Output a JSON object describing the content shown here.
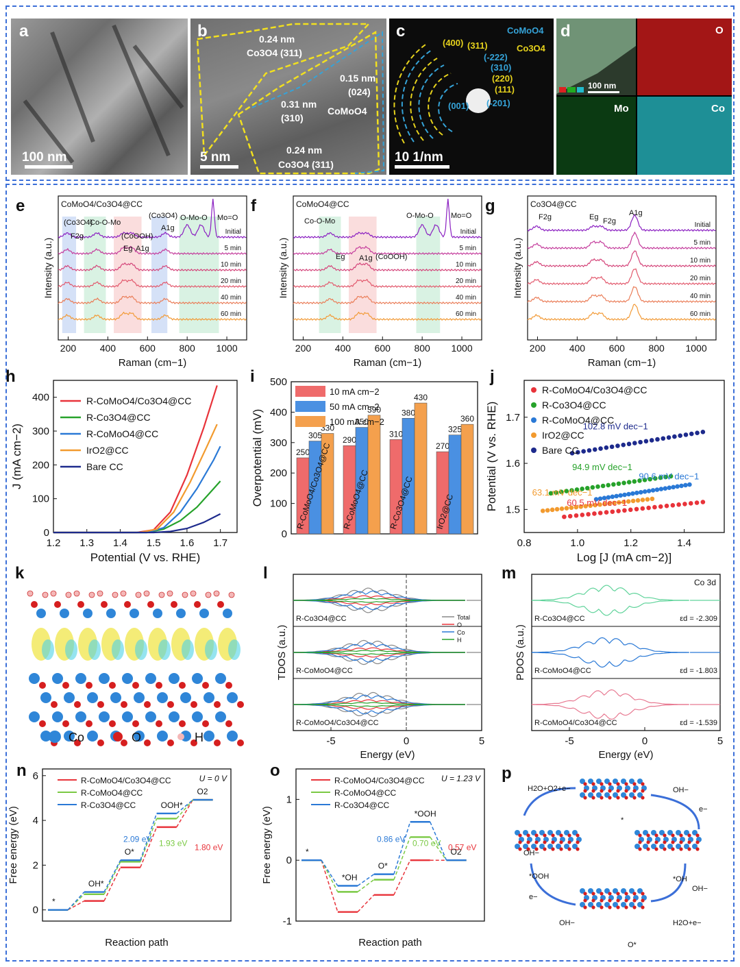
{
  "panel_labels": [
    "a",
    "b",
    "c",
    "d",
    "e",
    "f",
    "g",
    "h",
    "i",
    "j",
    "k",
    "l",
    "m",
    "n",
    "o",
    "p"
  ],
  "tem": {
    "a": {
      "scale": "100 nm"
    },
    "b": {
      "scale": "5 nm",
      "labels": [
        "0.24 nm",
        "Co3O4 (311)",
        "0.15 nm",
        "(024)",
        "0.31 nm",
        "(310)",
        "CoMoO4",
        "0.24 nm",
        "Co3O4 (311)"
      ]
    },
    "c": {
      "scale": "10 1/nm",
      "legend": [
        "CoMoO4",
        "Co3O4"
      ],
      "rings": [
        "(400)",
        "(311)",
        "(-222)",
        "(310)",
        "(220)",
        "(111)",
        "(001)",
        "(-201)"
      ]
    },
    "d": {
      "scale": "100 nm",
      "maps": [
        "O",
        "Mo",
        "Co"
      ],
      "mini_legend": [
        "O",
        "Mo",
        "Co"
      ]
    }
  },
  "colors": {
    "red": "#e8333a",
    "green": "#26a22a",
    "blue": "#2a79d6",
    "orange": "#f29a2e",
    "navy": "#1d2a8c",
    "frame": "#3b6fd8"
  },
  "raman": {
    "xlabel": "Raman (cm−1)",
    "ylabel": "Intensity (a.u.)",
    "xticks": [
      200,
      400,
      600,
      800,
      1000
    ],
    "times": [
      "Initial",
      "5 min",
      "10 min",
      "20 min",
      "40 min",
      "60 min"
    ],
    "e": {
      "title": "CoMoO4/Co3O4@CC",
      "annotations": [
        "(Co3O4)",
        "F2g",
        "Co-O-Mo",
        "(CoOOH)",
        "Eg",
        "A1g",
        "(Co3O4)",
        "A1g",
        "O-Mo-O",
        "Mo=O"
      ]
    },
    "f": {
      "title": "CoMoO4@CC",
      "annotations": [
        "Co-O-Mo",
        "O-Mo-O",
        "Mo=O",
        "Eg",
        "A1g",
        "(CoOOH)"
      ]
    },
    "g": {
      "title": "Co3O4@CC",
      "annotations": [
        "F2g",
        "Eg",
        "F2g",
        "A1g"
      ]
    }
  },
  "chart_data": [
    {
      "type": "line",
      "panel": "h",
      "xlabel": "Potential (V vs. RHE)",
      "ylabel": "J (mA cm−2)",
      "xlim": [
        1.2,
        1.75
      ],
      "ylim": [
        0,
        450
      ],
      "xticks": [
        1.2,
        1.3,
        1.4,
        1.5,
        1.6,
        1.7
      ],
      "yticks": [
        0,
        100,
        200,
        300,
        400
      ],
      "series": [
        {
          "name": "R-CoMoO4/Co3O4@CC",
          "color": "#e8333a",
          "x": [
            1.2,
            1.45,
            1.5,
            1.55,
            1.6,
            1.65,
            1.69
          ],
          "y": [
            0,
            0,
            8,
            60,
            170,
            310,
            435
          ]
        },
        {
          "name": "R-Co3O4@CC",
          "color": "#26a22a",
          "x": [
            1.2,
            1.48,
            1.53,
            1.58,
            1.63,
            1.68,
            1.7
          ],
          "y": [
            0,
            0,
            10,
            35,
            75,
            130,
            152
          ]
        },
        {
          "name": "R-CoMoO4@CC",
          "color": "#2a79d6",
          "x": [
            1.2,
            1.48,
            1.53,
            1.58,
            1.63,
            1.68,
            1.7
          ],
          "y": [
            0,
            0,
            14,
            60,
            130,
            215,
            255
          ]
        },
        {
          "name": "IrO2@CC",
          "color": "#f29a2e",
          "x": [
            1.2,
            1.46,
            1.51,
            1.56,
            1.61,
            1.66,
            1.69
          ],
          "y": [
            0,
            0,
            10,
            60,
            150,
            255,
            320
          ]
        },
        {
          "name": "Bare CC",
          "color": "#1d2a8c",
          "x": [
            1.2,
            1.5,
            1.55,
            1.6,
            1.65,
            1.7
          ],
          "y": [
            0,
            0,
            3,
            12,
            30,
            55
          ]
        }
      ]
    },
    {
      "type": "bar",
      "panel": "i",
      "ylabel": "Overpotential (mV)",
      "ylim": [
        0,
        500
      ],
      "yticks": [
        0,
        100,
        200,
        300,
        400,
        500
      ],
      "categories": [
        "R-CoMoO4/Co3O4@CC",
        "R-CoMoO4@CC",
        "R-Co3O4@CC",
        "IrO2@CC"
      ],
      "series": [
        {
          "name": "10 mA cm−2",
          "color": "#ef6b6b",
          "values": [
            250,
            290,
            310,
            270
          ]
        },
        {
          "name": "50 mA cm−2",
          "color": "#4a90e2",
          "values": [
            305,
            350,
            380,
            325
          ]
        },
        {
          "name": "100 mA cm−2",
          "color": "#f4a04d",
          "values": [
            330,
            390,
            430,
            360
          ]
        }
      ]
    },
    {
      "type": "scatter",
      "panel": "j",
      "xlabel": "Log [J (mA cm−2)]",
      "ylabel": "Potential (V vs. RHE)",
      "xlim": [
        0.8,
        1.55
      ],
      "ylim": [
        1.45,
        1.78
      ],
      "xticks": [
        0.8,
        1.0,
        1.2,
        1.4
      ],
      "yticks": [
        1.5,
        1.6,
        1.7
      ],
      "series": [
        {
          "name": "R-CoMoO4/Co3O4@CC",
          "color": "#e8333a",
          "x": [
            0.95,
            1.47
          ],
          "y": [
            1.484,
            1.516
          ],
          "slope": "60.5 mV dec−1"
        },
        {
          "name": "R-Co3O4@CC",
          "color": "#26a22a",
          "x": [
            0.9,
            1.35
          ],
          "y": [
            1.535,
            1.572
          ],
          "slope": "94.9 mV dec−1"
        },
        {
          "name": "R-CoMoO4@CC",
          "color": "#2a79d6",
          "x": [
            1.07,
            1.42
          ],
          "y": [
            1.522,
            1.554
          ],
          "slope": "90.6 mV dec−1"
        },
        {
          "name": "IrO2@CC",
          "color": "#f29a2e",
          "x": [
            0.87,
            1.28
          ],
          "y": [
            1.497,
            1.523
          ],
          "slope": "63.1 mV dec−1"
        },
        {
          "name": "Bare CC",
          "color": "#1d2a8c",
          "x": [
            0.98,
            1.47
          ],
          "y": [
            1.622,
            1.668
          ],
          "slope": "102.8 mV dec−1"
        }
      ]
    },
    {
      "type": "line",
      "panel": "n",
      "title": "U = 0 V",
      "xlabel": "Reaction path",
      "ylabel": "Free energy (eV)",
      "ylim": [
        -0.5,
        6.3
      ],
      "yticks": [
        0,
        2,
        4,
        6
      ],
      "steps": [
        "*",
        "OH*",
        "O*",
        "OOH*",
        "O2"
      ],
      "series": [
        {
          "name": "R-CoMoO4/Co3O4@CC",
          "color": "#e8333a",
          "values": [
            0,
            0.4,
            1.9,
            3.7,
            4.92
          ]
        },
        {
          "name": "R-CoMoO4@CC",
          "color": "#7ac943",
          "values": [
            0,
            0.7,
            2.15,
            4.08,
            4.92
          ]
        },
        {
          "name": "R-Co3O4@CC",
          "color": "#2a79d6",
          "values": [
            0,
            0.8,
            2.22,
            4.31,
            4.92
          ]
        }
      ],
      "annotations": [
        "2.09 eV",
        "1.93 eV",
        "1.80 eV"
      ]
    },
    {
      "type": "line",
      "panel": "o",
      "title": "U = 1.23 V",
      "xlabel": "Reaction path",
      "ylabel": "Free energy (eV)",
      "ylim": [
        -1.0,
        1.5
      ],
      "yticks": [
        -1,
        0,
        1
      ],
      "steps": [
        "*",
        "*OH",
        "O*",
        "*OOH",
        "O2"
      ],
      "series": [
        {
          "name": "R-CoMoO4/Co3O4@CC",
          "color": "#e8333a",
          "values": [
            0,
            -0.85,
            -0.57,
            0,
            0
          ]
        },
        {
          "name": "R-CoMoO4@CC",
          "color": "#7ac943",
          "values": [
            0,
            -0.52,
            -0.32,
            0.38,
            0
          ]
        },
        {
          "name": "R-Co3O4@CC",
          "color": "#2a79d6",
          "values": [
            0,
            -0.42,
            -0.23,
            0.63,
            0
          ]
        }
      ],
      "annotations": [
        "0.86 eV",
        "0.70 eV",
        "0.57 eV"
      ]
    }
  ],
  "dos": {
    "l": {
      "ylabel": "TDOS (a.u.)",
      "xlabel": "Energy (eV)",
      "xticks": [
        "-5",
        "0",
        "5"
      ],
      "rows": [
        "R-Co3O4@CC",
        "R-CoMoO4@CC",
        "R-CoMoO4/Co3O4@CC"
      ],
      "legend": [
        "Total",
        "O",
        "Co",
        "H"
      ]
    },
    "m": {
      "ylabel": "PDOS (a.u.)",
      "xlabel": "Energy (eV)",
      "xticks": [
        "-5",
        "0",
        "5"
      ],
      "tag": "Co 3d",
      "rows": [
        "R-Co3O4@CC",
        "R-CoMoO4@CC",
        "R-CoMoO4/Co3O4@CC"
      ],
      "ed": [
        "εd = -2.309",
        "εd = -1.803",
        "εd = -1.539"
      ]
    }
  },
  "structure_k": {
    "legend": [
      "Co",
      "O",
      "H"
    ]
  },
  "cycle_p": {
    "labels": [
      "H2O+O2+e−",
      "OH−",
      "e−",
      "*",
      "*OH",
      "OH−",
      "H2O+e−",
      "O*",
      "OH−",
      "e−",
      "*OOH",
      "OH−"
    ]
  }
}
